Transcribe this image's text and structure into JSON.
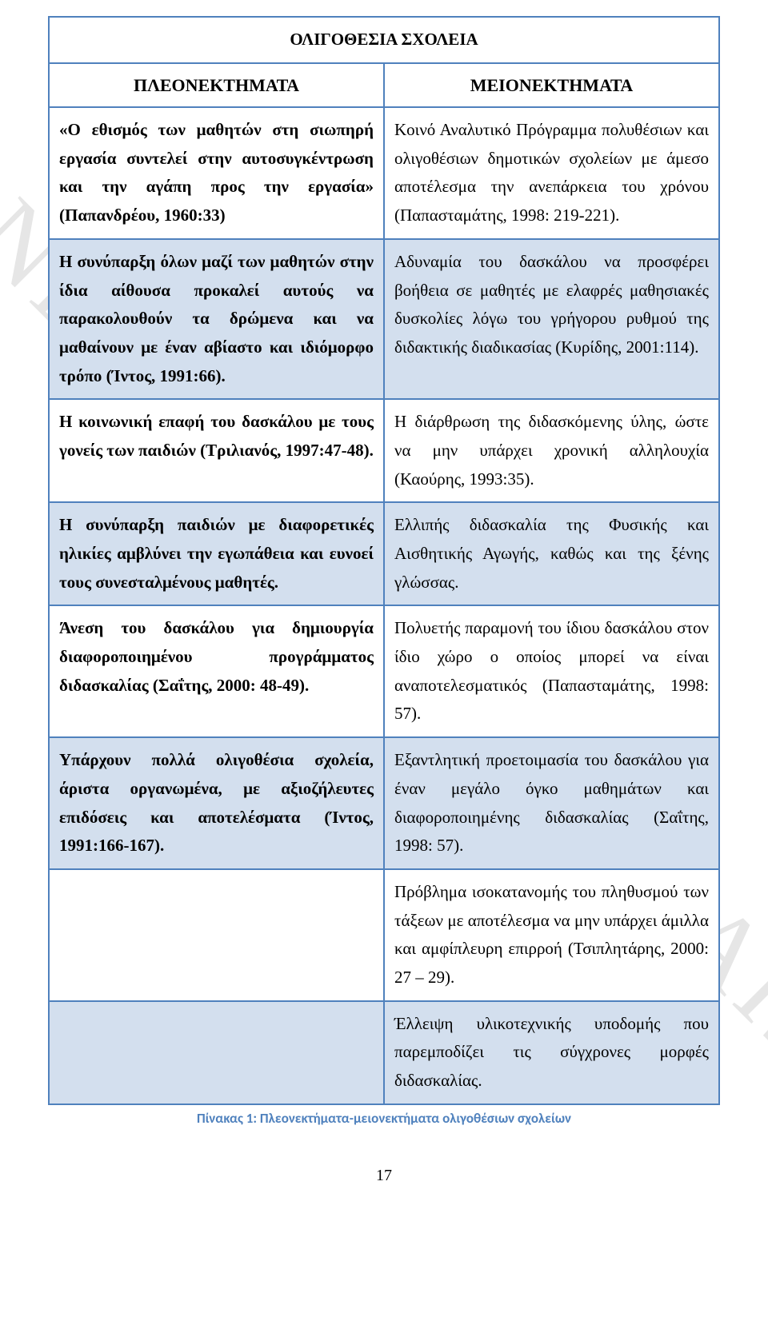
{
  "watermark": "ΠΑΝΕΠΙΣΤΗΜΙΟ ΠΕΙΡΑΙΩΣ",
  "title": "ΟΛΙΓΟΘΕΣΙΑ ΣΧΟΛΕΙΑ",
  "header_left": "ΠΛΕΟΝΕΚΤΗΜΑΤΑ",
  "header_right": "ΜΕΙΟΝΕΚΤΗΜΑΤΑ",
  "rows": [
    {
      "left": "«Ο εθισμός των μαθητών στη σιωπηρή εργασία συντελεί στην αυτοσυγκέντρωση και την αγάπη προς την εργασία» (Παπανδρέου, 1960:33)",
      "right": "Κοινό Αναλυτικό Πρόγραμμα πολυθέσιων και ολιγοθέσιων δημοτικών σχολείων με άμεσο αποτέλεσμα την ανεπάρκεια του χρόνου (Παπασταμάτης, 1998: 219-221).",
      "alt": false,
      "left_bold": true
    },
    {
      "left": "Η συνύπαρξη όλων μαζί των μαθητών στην ίδια αίθουσα προκαλεί αυτούς να παρακολουθούν τα δρώμενα και να μαθαίνουν με έναν αβίαστο και ιδιόμορφο τρόπο (Ίντος, 1991:66).",
      "right": "Αδυναμία του δασκάλου να προσφέρει βοήθεια σε μαθητές με ελαφρές μαθησιακές δυσκολίες λόγω του γρήγορου ρυθμού της διδακτικής διαδικασίας (Κυρίδης, 2001:114).",
      "alt": true,
      "left_bold": true
    },
    {
      "left": "Η κοινωνική επαφή του δασκάλου με τους γονείς των παιδιών (Τριλιανός, 1997:47-48).",
      "right": "Η διάρθρωση της διδασκόμενης ύλης, ώστε να μην υπάρχει χρονική αλληλουχία (Καούρης, 1993:35).",
      "alt": false,
      "left_bold": true
    },
    {
      "left": "Η συνύπαρξη παιδιών με διαφορετικές ηλικίες αμβλύνει την εγωπάθεια και ευνοεί τους συνεσταλμένους μαθητές.",
      "right": "Ελλιπής διδασκαλία της Φυσικής και Αισθητικής Αγωγής, καθώς και της ξένης γλώσσας.",
      "alt": true,
      "left_bold": true
    },
    {
      "left": "Άνεση του δασκάλου για δημιουργία διαφοροποιημένου προγράμματος διδασκαλίας (Σαΐτης, 2000: 48-49).",
      "right": "Πολυετής παραμονή του ίδιου δασκάλου στον ίδιο χώρο ο οποίος μπορεί να είναι αναποτελεσματικός (Παπασταμάτης, 1998: 57).",
      "alt": false,
      "left_bold": true
    },
    {
      "left": "Υπάρχουν πολλά ολιγοθέσια σχολεία, άριστα οργανωμένα, με αξιοζήλευτες επιδόσεις και αποτελέσματα (Ίντος, 1991:166-167).",
      "right": "Εξαντλητική προετοιμασία του δασκάλου για έναν μεγάλο όγκο μαθημάτων και διαφοροποιημένης διδασκαλίας (Σαΐτης, 1998: 57).",
      "alt": true,
      "left_bold": true
    },
    {
      "left": "",
      "right": "Πρόβλημα ισοκατανομής του πληθυσμού των τάξεων με αποτέλεσμα να μην υπάρχει άμιλλα και αμφίπλευρη επιρροή (Τσιπλητάρης, 2000: 27 – 29).",
      "alt": false,
      "left_bold": false
    },
    {
      "left": "",
      "right": "     Έλλειψη υλικοτεχνικής υποδομής που παρεμποδίζει τις σύγχρονες μορφές διδασκαλίας.",
      "alt": true,
      "left_bold": false
    }
  ],
  "caption": "Πίνακας 1: Πλεονεκτήματα-μειονεκτήματα ολιγοθέσιων σχολείων",
  "page_number": "17",
  "colors": {
    "border": "#4f81bd",
    "alt_bg": "#d3dfee",
    "caption": "#4f81bd",
    "watermark": "#e6e6e6"
  }
}
